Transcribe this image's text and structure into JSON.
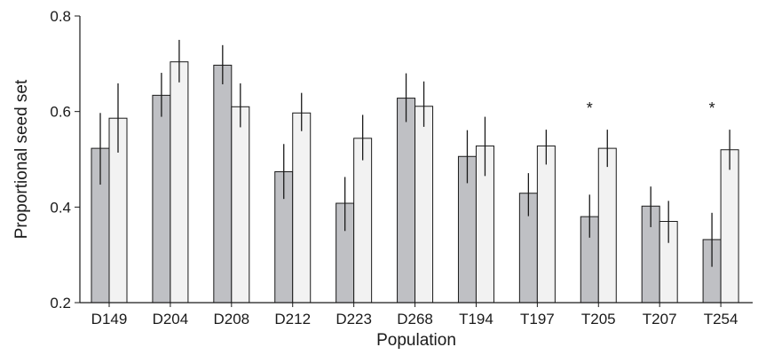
{
  "chart_data": {
    "type": "bar",
    "title": "",
    "xlabel": "Population",
    "ylabel": "Proportional seed set",
    "ylim": [
      0.2,
      0.8
    ],
    "yticks": [
      "0.2",
      "0.4",
      "0.6",
      "0.8"
    ],
    "grid": false,
    "categories": [
      "D149",
      "D204",
      "D208",
      "D212",
      "D223",
      "D268",
      "T194",
      "T197",
      "T205",
      "T207",
      "T254"
    ],
    "series": [
      {
        "color": "#bfc0c4",
        "values": [
          0.523,
          0.634,
          0.697,
          0.474,
          0.408,
          0.628,
          0.506,
          0.429,
          0.38,
          0.402,
          0.332
        ],
        "error_low": [
          0.447,
          0.589,
          0.657,
          0.417,
          0.35,
          0.578,
          0.45,
          0.381,
          0.336,
          0.358,
          0.275
        ],
        "error_high": [
          0.597,
          0.681,
          0.739,
          0.532,
          0.463,
          0.68,
          0.561,
          0.471,
          0.426,
          0.443,
          0.388
        ]
      },
      {
        "color": "#f2f2f2",
        "values": [
          0.586,
          0.704,
          0.61,
          0.597,
          0.544,
          0.611,
          0.528,
          0.528,
          0.523,
          0.37,
          0.52
        ],
        "error_low": [
          0.514,
          0.661,
          0.567,
          0.559,
          0.498,
          0.568,
          0.465,
          0.489,
          0.484,
          0.325,
          0.478
        ],
        "error_high": [
          0.659,
          0.75,
          0.659,
          0.639,
          0.593,
          0.663,
          0.589,
          0.562,
          0.562,
          0.413,
          0.562
        ]
      }
    ],
    "annotations": [
      {
        "category": "T205",
        "text": "*"
      },
      {
        "category": "T254",
        "text": "*"
      }
    ]
  }
}
